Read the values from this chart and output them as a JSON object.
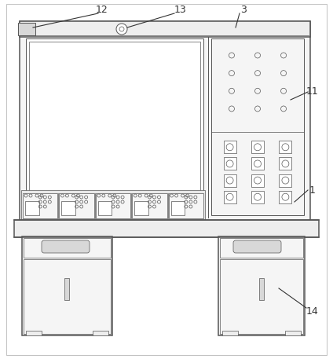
{
  "bg_color": "#ffffff",
  "lc": "#555555",
  "lc_dark": "#333333",
  "fill_white": "#ffffff",
  "fill_light": "#eeeeee",
  "fill_lighter": "#f5f5f5",
  "fill_medium": "#d8d8d8",
  "fill_panel": "#e8e8e8",
  "label_fontsize": 9,
  "lw_main": 1.1,
  "lw_mid": 0.7,
  "lw_thin": 0.5
}
